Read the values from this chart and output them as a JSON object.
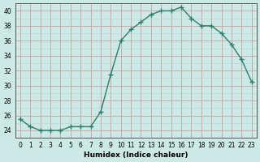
{
  "x": [
    0,
    1,
    2,
    3,
    4,
    5,
    6,
    7,
    8,
    9,
    10,
    11,
    12,
    13,
    14,
    15,
    16,
    17,
    18,
    19,
    20,
    21,
    22,
    23
  ],
  "y": [
    25.5,
    24.5,
    24.0,
    24.0,
    24.0,
    24.5,
    24.5,
    24.5,
    26.5,
    31.5,
    36.0,
    37.5,
    38.5,
    39.5,
    40.0,
    40.0,
    40.5,
    39.0,
    38.0,
    38.0,
    37.0,
    35.5,
    33.5,
    30.5
  ],
  "line_color": "#2e7d6e",
  "marker": "+",
  "marker_size": 4,
  "bg_color": "#cce9e5",
  "major_grid_color": "#c8a0a0",
  "minor_grid_color": "#b0d8d4",
  "xlabel": "Humidex (Indice chaleur)",
  "xlim": [
    -0.5,
    23.5
  ],
  "ylim": [
    23,
    41
  ],
  "yticks": [
    24,
    26,
    28,
    30,
    32,
    34,
    36,
    38,
    40
  ],
  "xticks": [
    0,
    1,
    2,
    3,
    4,
    5,
    6,
    7,
    8,
    9,
    10,
    11,
    12,
    13,
    14,
    15,
    16,
    17,
    18,
    19,
    20,
    21,
    22,
    23
  ],
  "label_fontsize": 6.5,
  "tick_fontsize": 5.5
}
